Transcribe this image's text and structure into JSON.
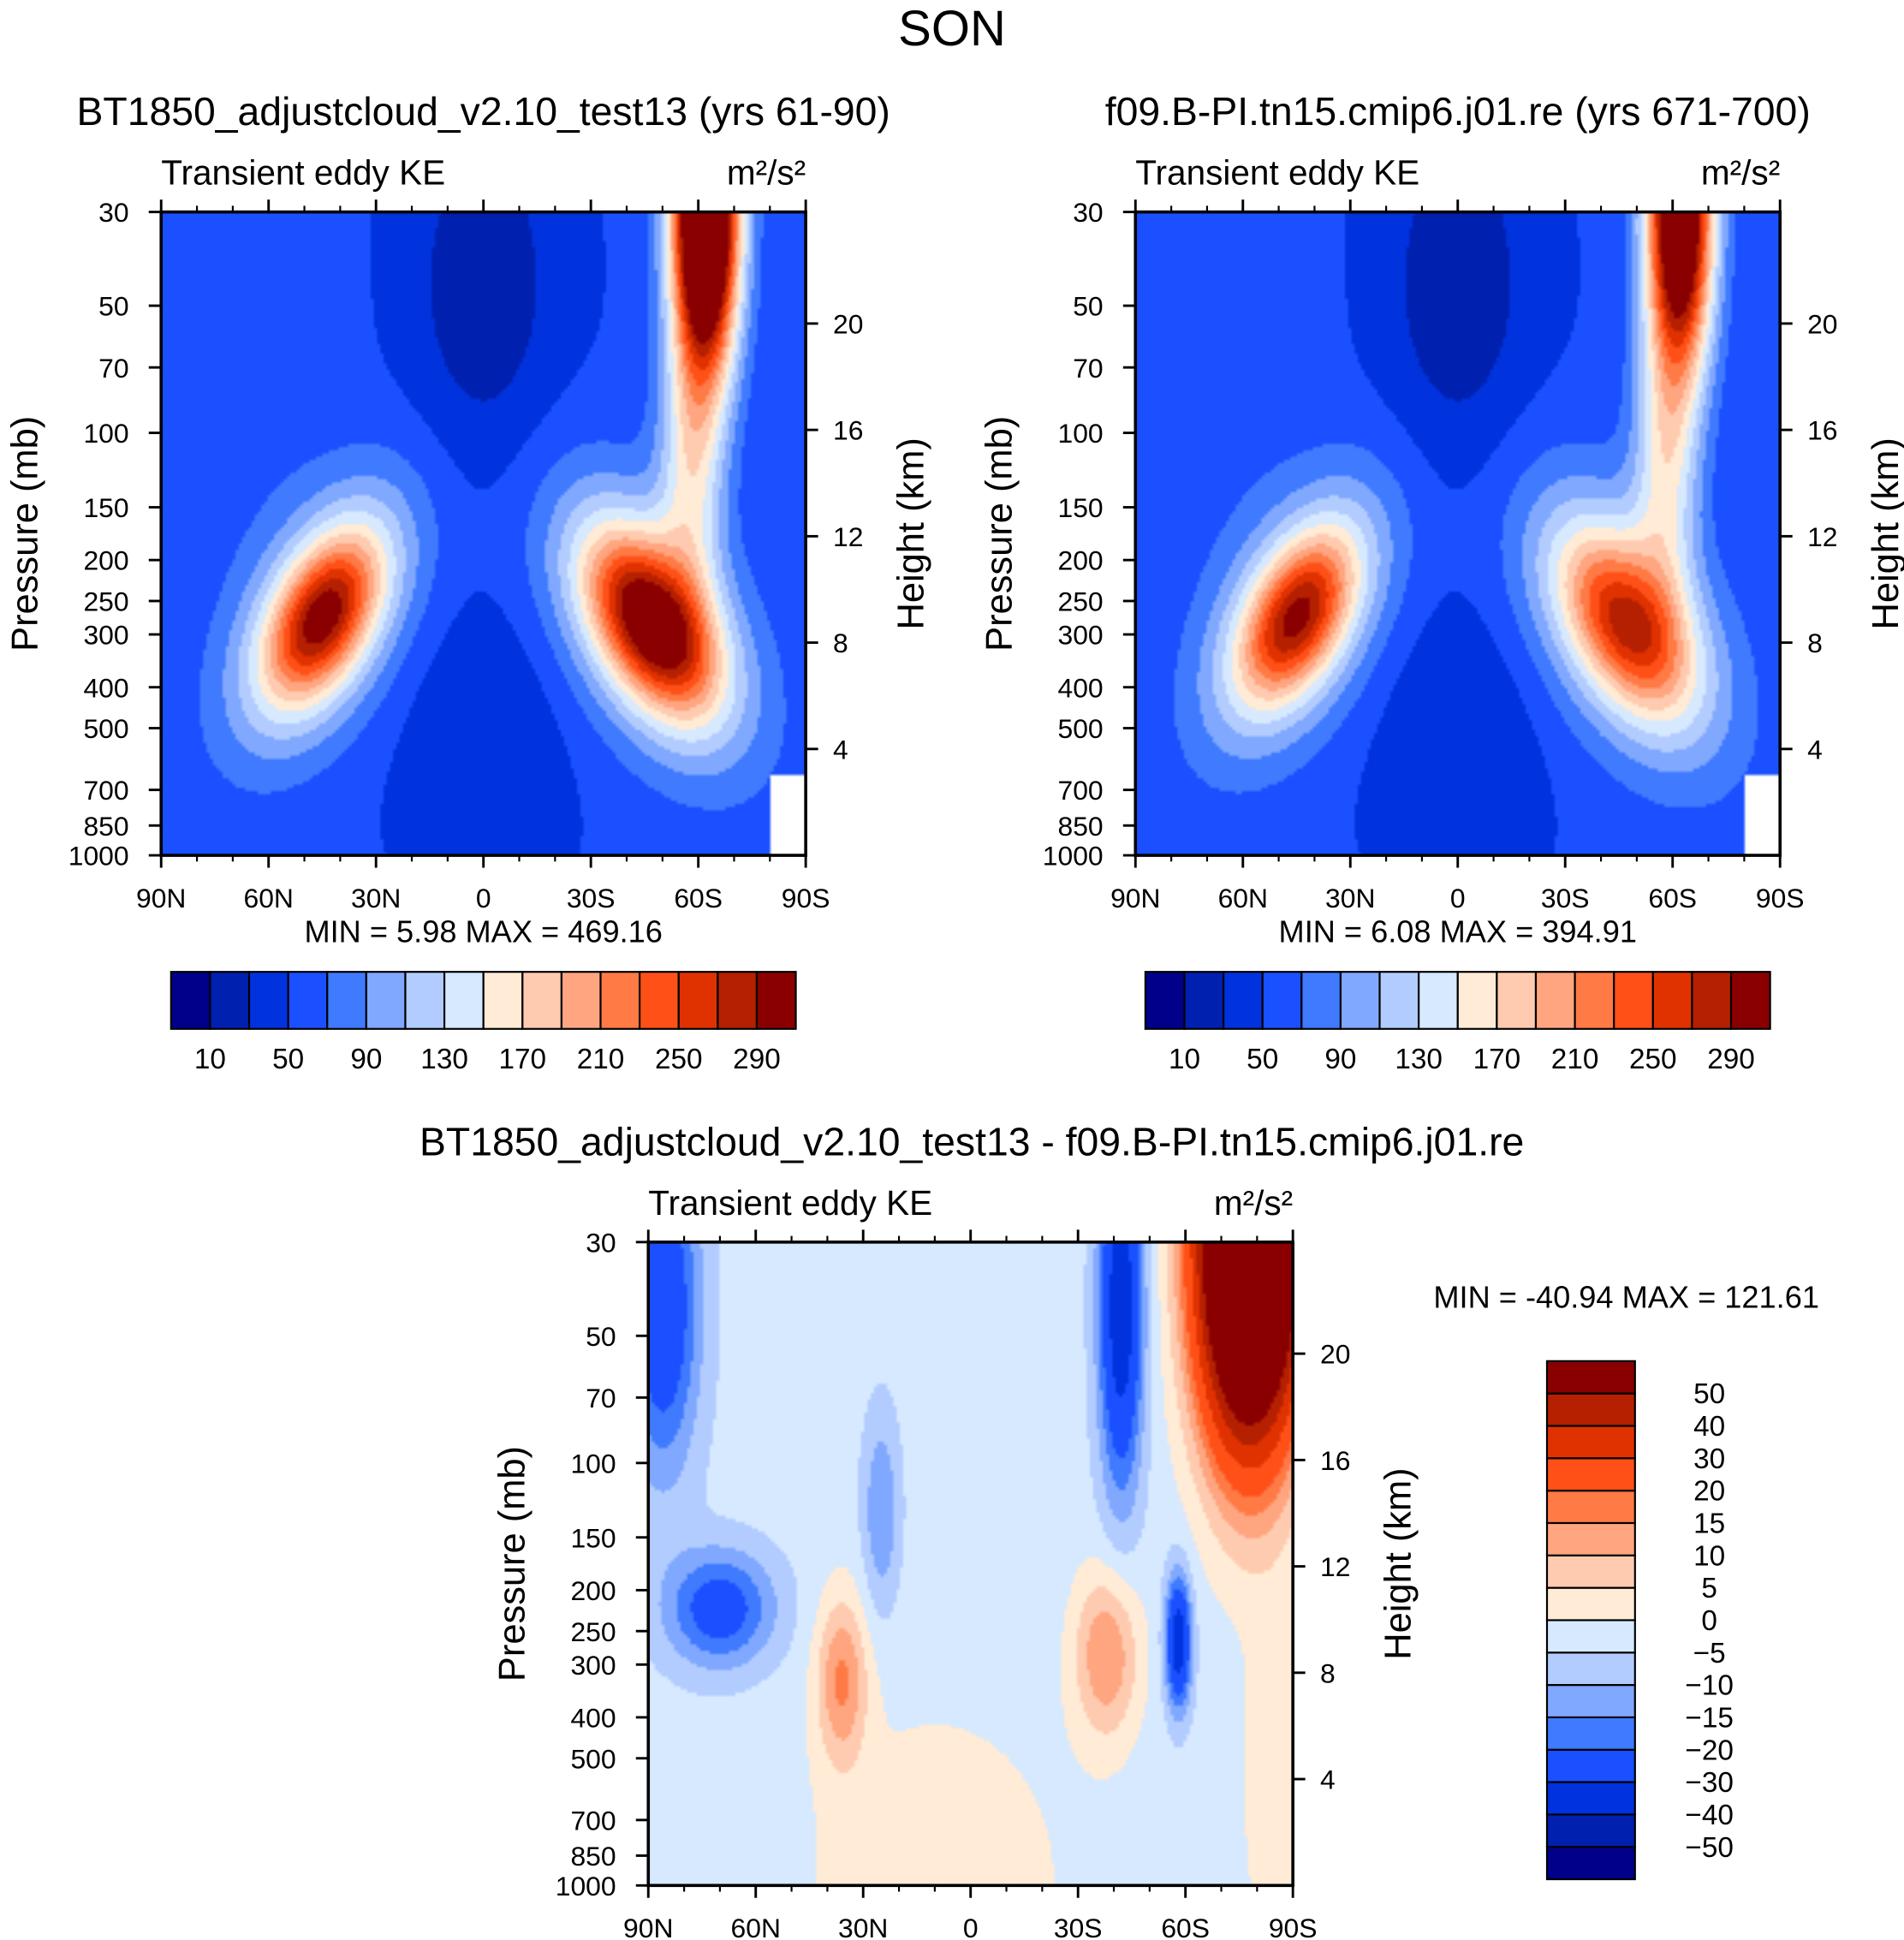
{
  "title": "SON",
  "chart_data": [
    {
      "type": "heatmap",
      "id": "panel1",
      "title": "BT1850_adjustcloud_v2.10_test13 (yrs 61-90)",
      "left_string": "Transient eddy KE",
      "right_string": "m²/s²",
      "ylabel": "Pressure (mb)",
      "y2label": "Height (km)",
      "xticks": [
        "90N",
        "60N",
        "30N",
        "0",
        "30S",
        "60S",
        "90S"
      ],
      "yticks": [
        30,
        50,
        70,
        100,
        150,
        200,
        250,
        300,
        400,
        500,
        700,
        850,
        1000
      ],
      "y2ticks": [
        4,
        8,
        12,
        16,
        20
      ],
      "ylim": [
        1000,
        30
      ],
      "xlim": [
        "90N",
        "90S"
      ],
      "min_label": "MIN =",
      "min_value": "5.98",
      "max_label": "MAX =",
      "max_value": "469.16",
      "levels": [
        10,
        30,
        50,
        70,
        90,
        110,
        130,
        150,
        170,
        190,
        210,
        230,
        250,
        270,
        290
      ],
      "colorbar_labels": [
        "10",
        "50",
        "90",
        "130",
        "170",
        "210",
        "250",
        "290"
      ],
      "features": {
        "nh_jet_peak": 300,
        "sh_jet_peak": 330,
        "sh_strat_peak": 469.16
      }
    },
    {
      "type": "heatmap",
      "id": "panel2",
      "title": "f09.B-PI.tn15.cmip6.j01.re (yrs 671-700)",
      "left_string": "Transient eddy KE",
      "right_string": "m²/s²",
      "ylabel": "Pressure (mb)",
      "y2label": "Height (km)",
      "xticks": [
        "90N",
        "60N",
        "30N",
        "0",
        "30S",
        "60S",
        "90S"
      ],
      "yticks": [
        30,
        50,
        70,
        100,
        150,
        200,
        250,
        300,
        400,
        500,
        700,
        850,
        1000
      ],
      "y2ticks": [
        4,
        8,
        12,
        16,
        20
      ],
      "ylim": [
        1000,
        30
      ],
      "xlim": [
        "90N",
        "90S"
      ],
      "min_label": "MIN =",
      "min_value": "6.08",
      "max_label": "MAX =",
      "max_value": "394.91",
      "levels": [
        10,
        30,
        50,
        70,
        90,
        110,
        130,
        150,
        170,
        190,
        210,
        230,
        250,
        270,
        290
      ],
      "colorbar_labels": [
        "10",
        "50",
        "90",
        "130",
        "170",
        "210",
        "250",
        "290"
      ],
      "features": {
        "nh_jet_peak": 290,
        "sh_jet_peak": 270,
        "sh_strat_peak": 394.91
      }
    },
    {
      "type": "heatmap",
      "id": "panel3",
      "title": "BT1850_adjustcloud_v2.10_test13 - f09.B-PI.tn15.cmip6.j01.re",
      "left_string": "Transient eddy KE",
      "right_string": "m²/s²",
      "ylabel": "Pressure (mb)",
      "y2label": "Height (km)",
      "xticks": [
        "90N",
        "60N",
        "30N",
        "0",
        "30S",
        "60S",
        "90S"
      ],
      "yticks": [
        30,
        50,
        70,
        100,
        150,
        200,
        250,
        300,
        400,
        500,
        700,
        850,
        1000
      ],
      "y2ticks": [
        4,
        8,
        12,
        16,
        20
      ],
      "ylim": [
        1000,
        30
      ],
      "xlim": [
        "90N",
        "90S"
      ],
      "min_label": "MIN =",
      "min_value": "-40.94",
      "max_label": "MAX =",
      "max_value": "121.61",
      "levels": [
        -50,
        -40,
        -30,
        -20,
        -15,
        -10,
        -5,
        0,
        5,
        10,
        15,
        20,
        30,
        40,
        50
      ],
      "colorbar_labels": [
        "-50",
        "-40",
        "-30",
        "-20",
        "-15",
        "-10",
        "-5",
        "0",
        "5",
        "10",
        "15",
        "20",
        "30",
        "40",
        "50"
      ]
    }
  ],
  "colors": [
    "#00008a",
    "#0020b0",
    "#0033dd",
    "#1a50ff",
    "#3f7aff",
    "#80a8ff",
    "#b2ccff",
    "#d6e9ff",
    "#ffebd6",
    "#ffcbb0",
    "#ffa57f",
    "#ff7a45",
    "#ff5018",
    "#e03200",
    "#b52000",
    "#8a0000"
  ]
}
